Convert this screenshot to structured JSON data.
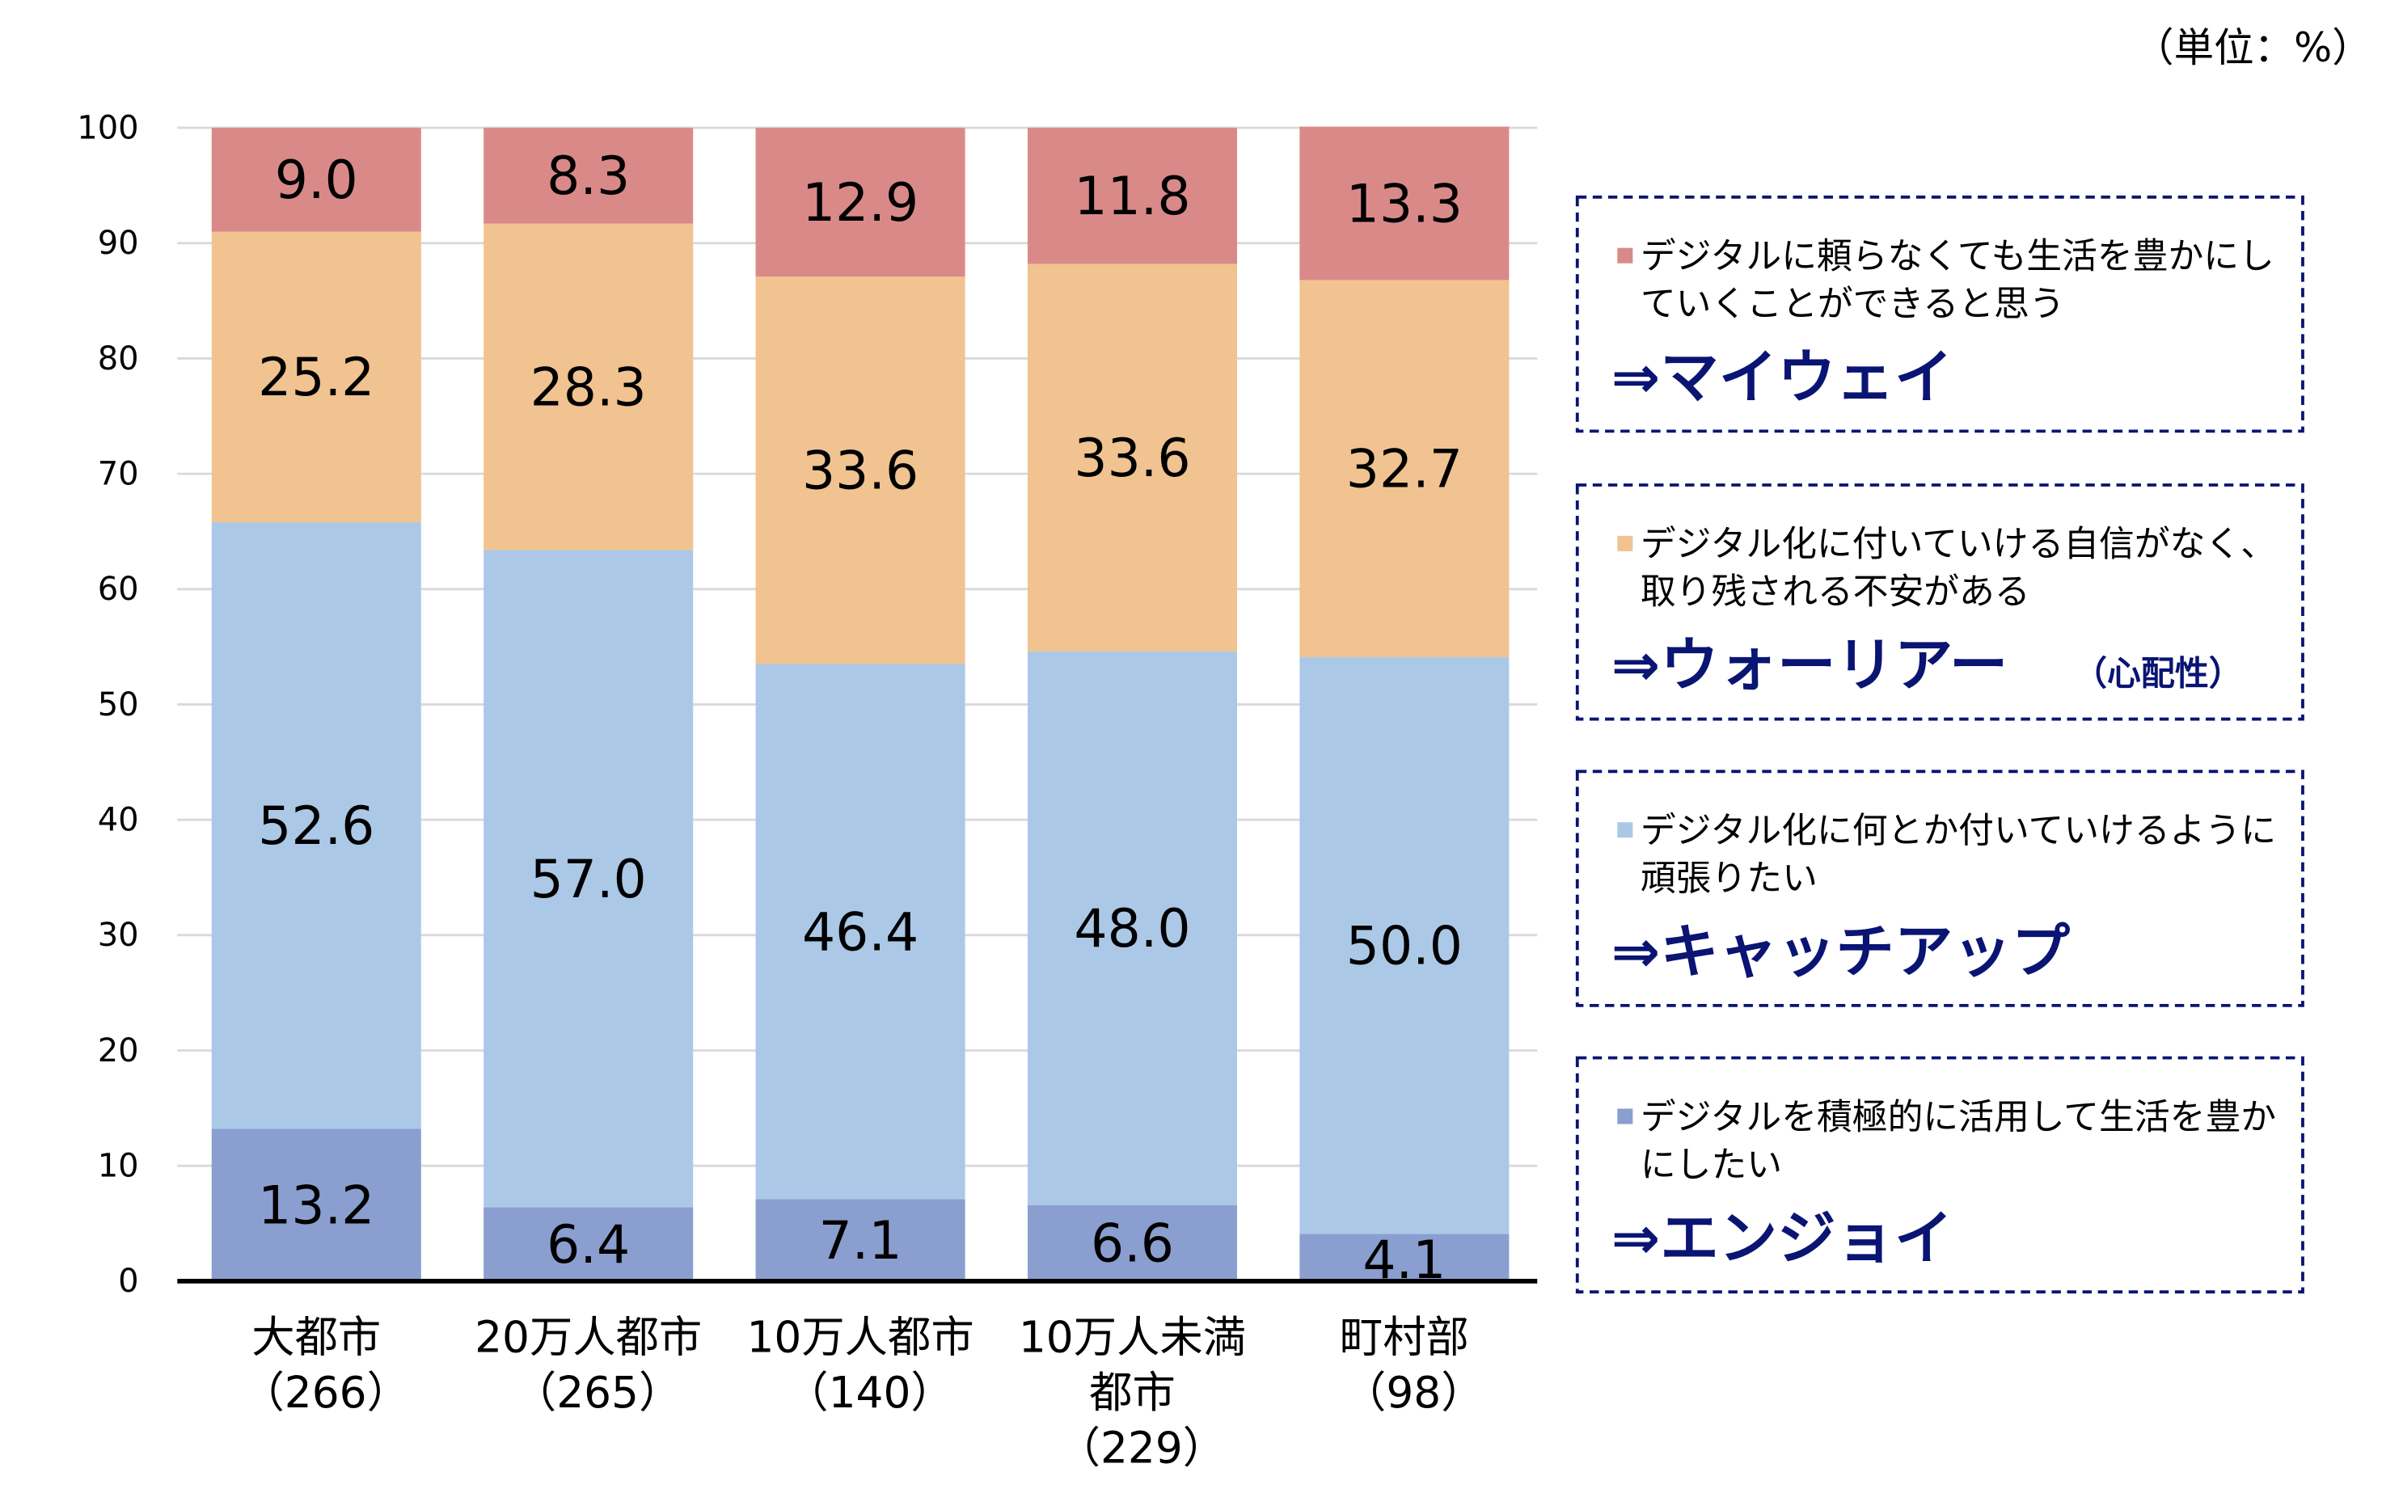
{
  "unit_label": "（単位：%）",
  "chart_data": {
    "type": "bar",
    "stacked": true,
    "ylim": [
      0,
      100
    ],
    "yticks": [
      0,
      10,
      20,
      30,
      40,
      50,
      60,
      70,
      80,
      90,
      100
    ],
    "grid": true,
    "legend_placement": "right",
    "categories": [
      [
        "大都市",
        "（266）"
      ],
      [
        "20万人都市",
        "（265）"
      ],
      [
        "10万人都市",
        "（140）"
      ],
      [
        "10万人未満",
        "都市",
        "（229）"
      ],
      [
        "町村部",
        "（98）"
      ]
    ],
    "series": [
      {
        "name": "デジタルを積極的に活用して生活を豊かにしたい",
        "color": "#8A9FCF",
        "values": [
          13.2,
          6.4,
          7.1,
          6.6,
          4.1
        ]
      },
      {
        "name": "デジタル化に何とか付いていけるように頑張りたい",
        "color": "#ABC9E7",
        "values": [
          52.6,
          57.0,
          46.4,
          48.0,
          50.0
        ]
      },
      {
        "name": "デジタル化に付いていける自信がなく、取り残される不安がある",
        "color": "#F0C391",
        "values": [
          25.2,
          28.3,
          33.6,
          33.6,
          32.7
        ]
      },
      {
        "name": "デジタルに頼らなくても生活を豊かにしていくことができると思う",
        "color": "#D98A88",
        "values": [
          9.0,
          8.3,
          12.9,
          11.8,
          13.3
        ]
      }
    ]
  },
  "legend": [
    {
      "lines": [
        "デジタルに頼らなくても生活を豊かにし",
        "ていくことができると思う"
      ],
      "color": "#D98A88",
      "title": "⇒マイウェイ",
      "sub": ""
    },
    {
      "lines": [
        "デジタル化に付いていける自信がなく、",
        "取り残される不安がある"
      ],
      "color": "#F0C391",
      "title": "⇒ウォーリアー",
      "sub": "（心配性）"
    },
    {
      "lines": [
        "デジタル化に何とか付いていけるように",
        "頑張りたい"
      ],
      "color": "#ABC9E7",
      "title": "⇒キャッチアップ",
      "sub": ""
    },
    {
      "lines": [
        "デジタルを積極的に活用して生活を豊か",
        "にしたい"
      ],
      "color": "#8A9FCF",
      "title": "⇒エンジョイ",
      "sub": ""
    }
  ],
  "accent_color": "#0A1473"
}
